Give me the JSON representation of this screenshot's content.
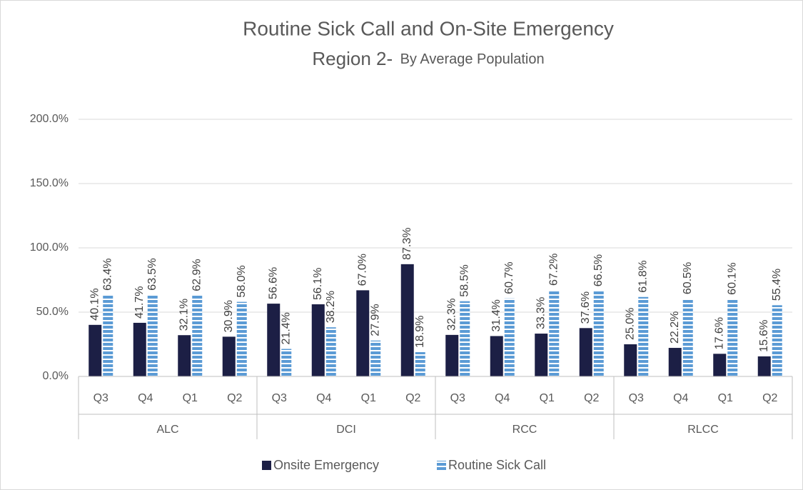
{
  "chart_data": {
    "type": "bar",
    "title": "Routine Sick Call and On-Site Emergency",
    "subtitle": [
      "Region 2-",
      "By Average Population"
    ],
    "groups": [
      {
        "name": "ALC",
        "categories": [
          "Q3",
          "Q4",
          "Q1",
          "Q2"
        ]
      },
      {
        "name": "DCI",
        "categories": [
          "Q3",
          "Q4",
          "Q1",
          "Q2"
        ]
      },
      {
        "name": "RCC",
        "categories": [
          "Q3",
          "Q4",
          "Q1",
          "Q2"
        ]
      },
      {
        "name": "RLCC",
        "categories": [
          "Q3",
          "Q4",
          "Q1",
          "Q2"
        ]
      }
    ],
    "series": [
      {
        "name": "Onsite Emergency",
        "color": "#1c1f45",
        "pattern": "solid",
        "values": [
          40.1,
          41.7,
          32.1,
          30.9,
          56.6,
          56.1,
          67.0,
          87.3,
          32.3,
          31.4,
          33.3,
          37.6,
          25.0,
          22.2,
          17.6,
          15.6
        ],
        "value_labels": [
          "40.1%",
          "41.7%",
          "32.1%",
          "30.9%",
          "56.6%",
          "56.1%",
          "67.0%",
          "87.3%",
          "32.3%",
          "31.4%",
          "33.3%",
          "37.6%",
          "25.0%",
          "22.2%",
          "17.6%",
          "15.6%"
        ]
      },
      {
        "name": "Routine Sick Call",
        "color": "#5b9bd5",
        "pattern": "horizontal-stripes",
        "values": [
          63.4,
          63.5,
          62.9,
          58.0,
          21.4,
          38.2,
          27.9,
          18.9,
          58.5,
          60.7,
          67.2,
          66.5,
          61.8,
          60.5,
          60.1,
          55.4
        ],
        "value_labels": [
          "63.4%",
          "63.5%",
          "62.9%",
          "58.0%",
          "21.4%",
          "38.2%",
          "27.9%",
          "18.9%",
          "58.5%",
          "60.7%",
          "67.2%",
          "66.5%",
          "61.8%",
          "60.5%",
          "60.1%",
          "55.4%"
        ]
      }
    ],
    "ylim": [
      0,
      200
    ],
    "yticks": [
      {
        "value": 0,
        "label": "0.0%"
      },
      {
        "value": 50,
        "label": "50.0%"
      },
      {
        "value": 100,
        "label": "100.0%"
      },
      {
        "value": 150,
        "label": "150.0%"
      },
      {
        "value": 200,
        "label": "200.0%"
      }
    ],
    "grid": true,
    "legend": "bottom"
  }
}
